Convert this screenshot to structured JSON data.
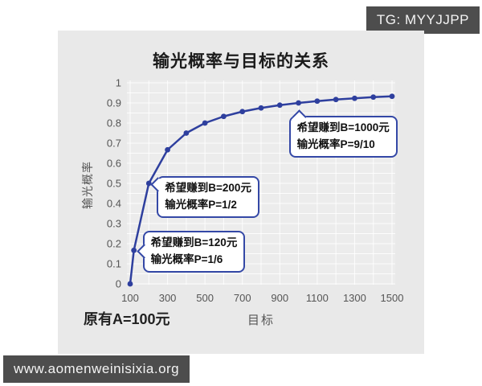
{
  "watermarks": {
    "tg_badge": "TG: MYYJJPP",
    "site_badge": "www.aomenweinisixia.org"
  },
  "chart_data": {
    "type": "line",
    "title": "输光概率与目标的关系",
    "xlabel": "目标",
    "ylabel": "输光概率",
    "note": "原有A=100元",
    "x": [
      100,
      120,
      200,
      300,
      400,
      500,
      600,
      700,
      800,
      900,
      1000,
      1100,
      1200,
      1300,
      1400,
      1500
    ],
    "y": [
      0,
      0.167,
      0.5,
      0.667,
      0.75,
      0.8,
      0.833,
      0.857,
      0.875,
      0.889,
      0.9,
      0.909,
      0.917,
      0.923,
      0.929,
      0.933
    ],
    "xticks": [
      "100",
      "300",
      "500",
      "700",
      "900",
      "1100",
      "1300",
      "1500"
    ],
    "yticks": [
      "0",
      "0.1",
      "0.2",
      "0.3",
      "0.4",
      "0.5",
      "0.6",
      "0.7",
      "0.8",
      "0.9",
      "1"
    ],
    "xlim": [
      100,
      1500
    ],
    "ylim": [
      0,
      1
    ],
    "grid": true,
    "legend": "none",
    "line_color": "#2e3f9e",
    "plot_bg_color": "#ececec",
    "annotations": [
      {
        "label_lines": [
          "希望赚到B=200元",
          "输光概率P=1/2"
        ],
        "target_x": 200,
        "target_y": 0.5,
        "pointer": "left"
      },
      {
        "label_lines": [
          "希望赚到B=120元",
          "输光概率P=1/6"
        ],
        "target_x": 120,
        "target_y": 0.167,
        "pointer": "left"
      },
      {
        "label_lines": [
          "希望赚到B=1000元",
          "输光概率P=9/10"
        ],
        "target_x": 1000,
        "target_y": 0.9,
        "pointer": "top"
      }
    ]
  }
}
